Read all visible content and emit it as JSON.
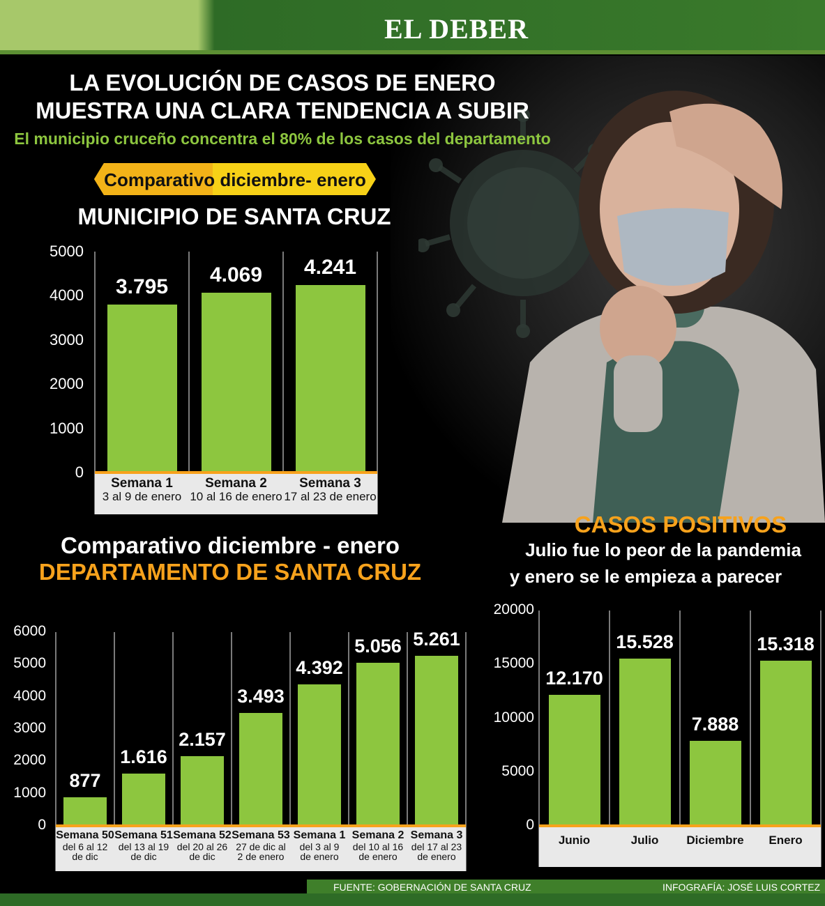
{
  "header": {
    "brand": "EL DEBER",
    "accent": "#3a7a2b"
  },
  "titles": {
    "line1": "LA EVOLUCIÓN DE CASOS DE ENERO",
    "line2": "MUESTRA UNA CLARA TENDENCIA A SUBIR",
    "subtitle": "El municipio cruceño concentra el 80% de los casos del departamento",
    "banner": "Comparativo diciembre- enero"
  },
  "chart_data": [
    {
      "type": "bar",
      "title": "MUNICIPIO DE SANTA CRUZ",
      "categories": [
        "Semana 1",
        "Semana 2",
        "Semana 3"
      ],
      "category_sublabels": [
        "3 al 9 de enero",
        "10 al 16 de enero",
        "17 al 23 de enero"
      ],
      "values": [
        3795,
        4069,
        4241
      ],
      "value_labels": [
        "3.795",
        "4.069",
        "4.241"
      ],
      "ylim": [
        0,
        5000
      ],
      "yticks": [
        "0",
        "1000",
        "2000",
        "3000",
        "4000",
        "5000"
      ],
      "bar_color": "#8dc63f"
    },
    {
      "type": "bar",
      "title": "Comparativo diciembre - enero",
      "subtitle": "DEPARTAMENTO DE SANTA CRUZ",
      "categories": [
        "Semana 50",
        "Semana 51",
        "Semana 52",
        "Semana 53",
        "Semana 1",
        "Semana 2",
        "Semana 3"
      ],
      "category_sublabels": [
        [
          "del 6 al 12",
          "de dic"
        ],
        [
          "del 13 al 19",
          "de dic"
        ],
        [
          "del 20 al 26",
          "de dic"
        ],
        [
          "27 de dic al",
          "2 de enero"
        ],
        [
          "del 3 al 9",
          "de enero"
        ],
        [
          "del 10 al 16",
          "de enero"
        ],
        [
          "del 17 al 23",
          "de enero"
        ]
      ],
      "values": [
        877,
        1616,
        2157,
        3493,
        4392,
        5056,
        5261
      ],
      "value_labels": [
        "877",
        "1.616",
        "2.157",
        "3.493",
        "4.392",
        "5.056",
        "5.261"
      ],
      "ylim": [
        0,
        6000
      ],
      "yticks": [
        "0",
        "1000",
        "2000",
        "3000",
        "4000",
        "5000",
        "6000"
      ],
      "bar_color": "#8dc63f"
    },
    {
      "type": "bar",
      "title": "CASOS POSITIVOS",
      "subtitle": [
        "Julio fue lo peor de la pandemia",
        "y enero se le empieza a parecer"
      ],
      "categories": [
        "Junio",
        "Julio",
        "Diciembre",
        "Enero"
      ],
      "values": [
        12170,
        15528,
        7888,
        15318
      ],
      "value_labels": [
        "12.170",
        "15.528",
        "7.888",
        "15.318"
      ],
      "ylim": [
        0,
        20000
      ],
      "yticks": [
        "0",
        "5000",
        "10000",
        "15000",
        "20000"
      ],
      "bar_color": "#8dc63f"
    }
  ],
  "footer": {
    "source": "FUENTE: GOBERNACIÓN DE SANTA CRUZ",
    "credit": "INFOGRAFÍA: JOSÉ LUIS CORTEZ"
  }
}
